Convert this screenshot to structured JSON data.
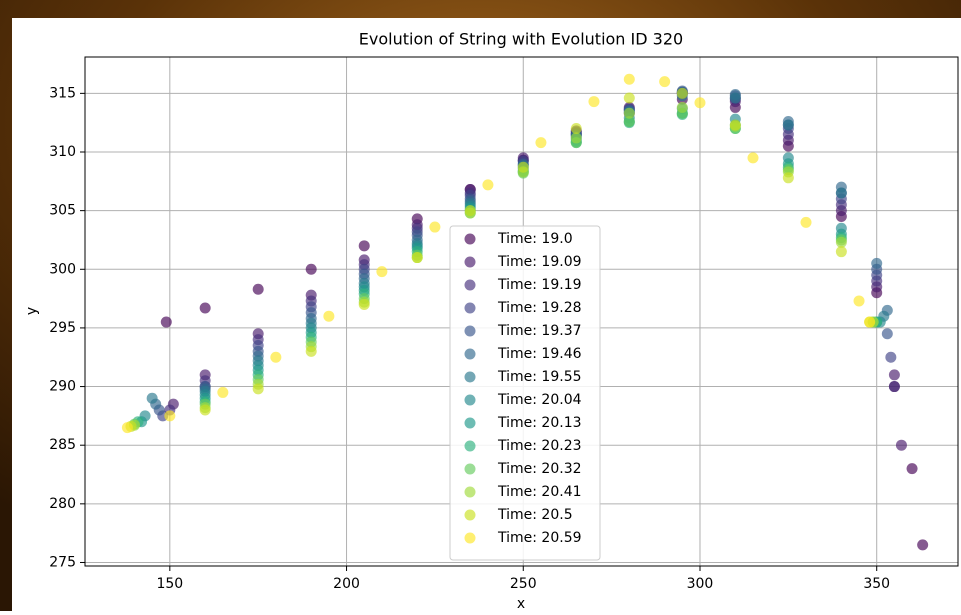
{
  "chart_data": {
    "type": "scatter",
    "title": "Evolution of String with Evolution ID 320",
    "xlabel": "x",
    "ylabel": "y",
    "xlim": [
      126,
      373
    ],
    "ylim": [
      274.7,
      318.1
    ],
    "xticks": [
      150,
      200,
      250,
      300,
      350
    ],
    "yticks": [
      275,
      280,
      285,
      290,
      295,
      300,
      305,
      310,
      315
    ],
    "grid": true,
    "legend": "center",
    "series": [
      {
        "name": "Time: 19.0",
        "color": "#440154",
        "x": [
          149,
          160,
          175,
          190,
          205,
          220,
          235,
          250,
          265,
          280,
          295,
          310,
          325,
          340,
          350,
          355,
          360,
          363
        ],
        "values": [
          295.5,
          296.7,
          298.3,
          300,
          302,
          304.3,
          306.8,
          309.3,
          311.5,
          313.3,
          314.5,
          313.8,
          310.5,
          304.5,
          298,
          290,
          283,
          276.5
        ]
      },
      {
        "name": "Time: 19.09",
        "color": "#481a6c",
        "x": [
          151,
          160,
          175,
          190,
          205,
          220,
          235,
          250,
          265,
          280,
          295,
          310,
          325,
          340,
          350,
          355,
          357
        ],
        "values": [
          288.5,
          291,
          294.5,
          297.8,
          300.8,
          303.8,
          306.8,
          309.5,
          311.8,
          313.8,
          315,
          314.3,
          311,
          305,
          298.5,
          291,
          285
        ]
      },
      {
        "name": "Time: 19.19",
        "color": "#472f7d",
        "x": [
          150,
          160,
          175,
          190,
          205,
          220,
          235,
          250,
          265,
          280,
          295,
          310,
          325,
          340,
          350,
          355
        ],
        "values": [
          288,
          290.5,
          294,
          297.3,
          300.4,
          303.5,
          306.5,
          309.3,
          311.7,
          313.7,
          315,
          314.5,
          311.5,
          305.5,
          299,
          290
        ]
      },
      {
        "name": "Time: 19.28",
        "color": "#414487",
        "x": [
          148,
          160,
          175,
          190,
          205,
          220,
          235,
          250,
          265,
          280,
          295,
          310,
          325,
          340,
          350,
          354
        ],
        "values": [
          287.5,
          290,
          293.5,
          296.8,
          300,
          303.2,
          306.3,
          309.2,
          311.6,
          313.6,
          315.1,
          314.6,
          312,
          306,
          299.5,
          292.5
        ]
      },
      {
        "name": "Time: 19.37",
        "color": "#39568c",
        "x": [
          147,
          160,
          175,
          190,
          205,
          220,
          235,
          250,
          265,
          280,
          295,
          310,
          325,
          340,
          350,
          353
        ],
        "values": [
          288,
          290,
          293,
          296.3,
          299.6,
          302.9,
          306,
          309,
          311.5,
          313.6,
          315.2,
          314.8,
          312.3,
          306.5,
          300,
          294.5
        ]
      },
      {
        "name": "Time: 19.46",
        "color": "#31688e",
        "x": [
          146,
          160,
          175,
          190,
          205,
          220,
          235,
          250,
          265,
          280,
          295,
          310,
          325,
          340,
          350,
          353
        ],
        "values": [
          288.5,
          289.8,
          292.6,
          295.8,
          299.2,
          302.5,
          305.8,
          308.9,
          311.4,
          313.5,
          315.1,
          314.9,
          312.6,
          307,
          300.5,
          296.5
        ]
      },
      {
        "name": "Time: 19.55",
        "color": "#2a788e",
        "x": [
          145,
          160,
          175,
          190,
          205,
          220,
          235,
          250,
          265,
          280,
          295,
          310,
          325,
          340,
          352
        ],
        "values": [
          289,
          289.6,
          292.2,
          295.4,
          298.8,
          302.2,
          305.6,
          308.8,
          311.3,
          313.4,
          314.8,
          314.6,
          312.3,
          306.5,
          296
        ]
      },
      {
        "name": "Time: 20.04",
        "color": "#23888e",
        "x": [
          143,
          160,
          175,
          190,
          205,
          220,
          235,
          250,
          265,
          280,
          295,
          310,
          325,
          340,
          351
        ],
        "values": [
          287.5,
          289.3,
          291.8,
          295,
          298.5,
          302,
          305.4,
          308.6,
          311.1,
          312.9,
          313.7,
          312.8,
          309.5,
          303.5,
          295.5
        ]
      },
      {
        "name": "Time: 20.13",
        "color": "#1f988b",
        "x": [
          142,
          160,
          175,
          190,
          205,
          220,
          235,
          250,
          265,
          280,
          295,
          310,
          325,
          340,
          350
        ],
        "values": [
          287,
          289,
          291.4,
          294.6,
          298.2,
          301.8,
          305.2,
          308.4,
          310.9,
          312.6,
          313.3,
          312.3,
          309,
          303,
          295.5
        ]
      },
      {
        "name": "Time: 20.23",
        "color": "#2cb17e",
        "x": [
          141,
          160,
          175,
          190,
          205,
          220,
          235,
          250,
          265,
          280,
          295,
          310,
          325,
          340,
          350
        ],
        "values": [
          287,
          288.7,
          291,
          294.2,
          297.9,
          301.5,
          305,
          308.3,
          310.8,
          312.5,
          313.2,
          312,
          308.7,
          302.7,
          295.5
        ]
      },
      {
        "name": "Time: 20.32",
        "color": "#65cb5e",
        "x": [
          140,
          160,
          175,
          190,
          205,
          220,
          235,
          250,
          265,
          280,
          295,
          310,
          325,
          340,
          349
        ],
        "values": [
          286.8,
          288.5,
          290.6,
          293.8,
          297.5,
          301.2,
          304.8,
          308.2,
          310.8,
          312.6,
          313.3,
          312,
          308.5,
          302.5,
          295.5
        ]
      },
      {
        "name": "Time: 20.41",
        "color": "#9fda3a",
        "x": [
          140,
          160,
          175,
          190,
          205,
          220,
          235,
          250,
          265,
          280,
          295,
          310,
          325,
          340,
          349
        ],
        "values": [
          286.7,
          288.2,
          290.2,
          293.4,
          297.2,
          301,
          304.8,
          308.3,
          311.2,
          313.3,
          313.8,
          312.2,
          308.3,
          302.3,
          295.5
        ]
      },
      {
        "name": "Time: 20.5",
        "color": "#cae11f",
        "x": [
          139,
          160,
          175,
          190,
          205,
          220,
          235,
          250,
          265,
          280,
          295,
          310,
          325,
          340,
          348
        ],
        "values": [
          286.6,
          288,
          289.8,
          293,
          297,
          301,
          305,
          308.7,
          312,
          314.6,
          315,
          312.3,
          307.8,
          301.5,
          295.5
        ]
      },
      {
        "name": "Time: 20.59",
        "color": "#fde725",
        "x": [
          138,
          150,
          165,
          180,
          195,
          210,
          225,
          240,
          255,
          270,
          280,
          290,
          300,
          315,
          330,
          345,
          348
        ],
        "values": [
          286.5,
          287.5,
          289.5,
          292.5,
          296,
          299.8,
          303.6,
          307.2,
          310.8,
          314.3,
          316.2,
          316,
          314.2,
          309.5,
          304,
          297.3,
          295.5
        ]
      }
    ]
  }
}
